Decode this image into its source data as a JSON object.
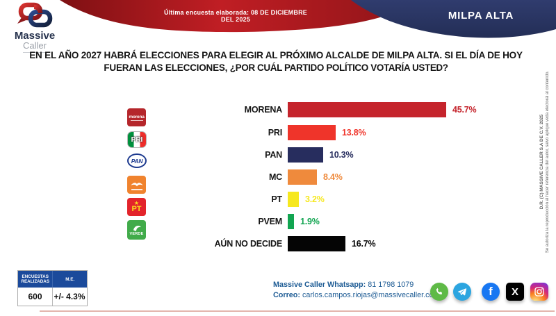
{
  "header": {
    "banner_text": "Última encuesta elaborada: 08 DE DICIEMBRE DEL 2025",
    "region_label": "MILPA ALTA",
    "logo_line1": "Massive",
    "logo_line2": "Caller",
    "colors": {
      "banner_red": "#A31A1F",
      "navy": "#2B3765"
    }
  },
  "title": {
    "line1": "EN EL AÑO 2027 HABRÁ ELECCIONES PARA ELEGIR AL PRÓXIMO ALCALDE DE MILPA ALTA. SI EL DÍA DE HOY",
    "line2_regular": "FUERAN LAS ELECCIONES, ",
    "line2_bold": "¿POR CUÁL PARTIDO POLÍTICO VOTARÍA USTED?"
  },
  "chart_data": {
    "type": "bar",
    "orientation": "horizontal",
    "categories": [
      "MORENA",
      "PRI",
      "PAN",
      "MC",
      "PT",
      "PVEM",
      "AÚN NO DECIDE"
    ],
    "values": [
      45.7,
      13.8,
      10.3,
      8.4,
      3.2,
      1.9,
      16.7
    ],
    "value_labels": [
      "45.7%",
      "13.8%",
      "10.3%",
      "8.4%",
      "3.2%",
      "1.9%",
      "16.7%"
    ],
    "bar_colors": [
      "#C5242C",
      "#EF342A",
      "#272D5E",
      "#EF8A3C",
      "#F6E81F",
      "#12A551",
      "#050505"
    ],
    "party_icons": [
      "morena-logo",
      "pri-logo",
      "pan-logo",
      "mc-logo",
      "pt-logo",
      "pvem-logo",
      null
    ],
    "xlim": [
      0,
      50
    ],
    "grid": false,
    "legend": false
  },
  "party_icon_text": {
    "morena": "morena",
    "pri": "PRI",
    "pan": "PAN",
    "pt": "PT",
    "pvem": "VERDE"
  },
  "stats": {
    "header1": "ENCUESTAS REALIZADAS",
    "header2": "M.E.",
    "value1": "600",
    "value2": "+/- 4.3%"
  },
  "contact": {
    "whatsapp_label": "Massive Caller Whatsapp:",
    "whatsapp_value": " 81 1798 1079",
    "email_label": "Correo:",
    "email_value": " carlos.campos.riojas@massivecaller.com"
  },
  "social_icons": [
    "whatsapp-icon",
    "telegram-icon",
    "facebook-icon",
    "x-icon",
    "instagram-icon"
  ],
  "copyright": {
    "line1": "D.R. (C) MASSIVE CALLER S.A DE C.V. 2025",
    "line2": "Se autoriza la reproducción al hacer referencia del autor, salvo aplique veda electoral al contenido."
  }
}
